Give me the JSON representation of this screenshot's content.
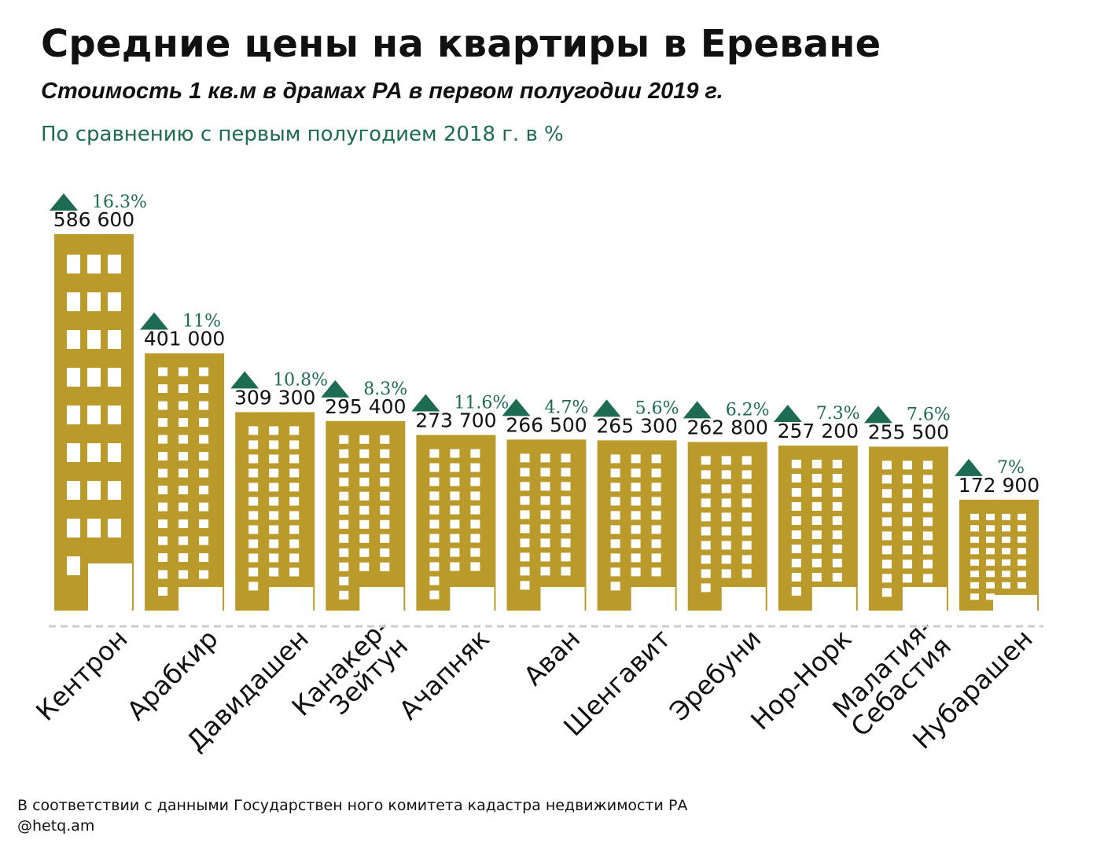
{
  "header": {
    "title": "Средние цены на квартиры в Ереване",
    "subtitle": "Стоимость 1 кв.м в драмах РА в первом полугодии 2019 г.",
    "note": "По сравнению с первым полугодием 2018 г. в %"
  },
  "footer": {
    "source": "В соответствии с данными Государствен ного комитета кадастра недвижимости РА",
    "handle": "@hetq.am"
  },
  "colors": {
    "bar": "#b99a2b",
    "window": "#ffffff",
    "accent": "#1c6b52",
    "baseline": "#cccccc"
  },
  "chart_data": {
    "type": "bar",
    "title": "Средние цены на квартиры в Ереване",
    "subtitle": "Стоимость 1 кв.м в драмах РА в первом полугодии 2019 г.",
    "categories": [
      [
        "Кентрон"
      ],
      [
        "Арабкир"
      ],
      [
        "Давидашен"
      ],
      [
        "Канакер-",
        "Зейтун"
      ],
      [
        "Ачапняк"
      ],
      [
        "Аван"
      ],
      [
        "Шенгавит"
      ],
      [
        "Эребуни"
      ],
      [
        "Нор-Норк"
      ],
      [
        "Малатия-",
        "Себастия"
      ],
      [
        "Нубарашен"
      ]
    ],
    "values": [
      586600,
      401000,
      309300,
      295400,
      273700,
      266500,
      265300,
      262800,
      257200,
      255500,
      172900
    ],
    "value_labels": [
      "586 600",
      "401 000",
      "309 300",
      "295 400",
      "273 700",
      "266 500",
      "265 300",
      "262 800",
      "257 200",
      "255 500",
      "172 900"
    ],
    "change_labels": [
      "16.3%",
      "11%",
      "10.8%",
      "8.3%",
      "11.6%",
      "4.7%",
      "5.6%",
      "6.2%",
      "7.3%",
      "7.6%",
      "7%"
    ],
    "change_values": [
      16.3,
      11,
      10.8,
      8.3,
      11.6,
      4.7,
      5.6,
      6.2,
      7.3,
      7.6,
      7
    ],
    "change_direction": "up",
    "xlabel": "",
    "ylabel": "",
    "legend": "none",
    "grid": false
  }
}
